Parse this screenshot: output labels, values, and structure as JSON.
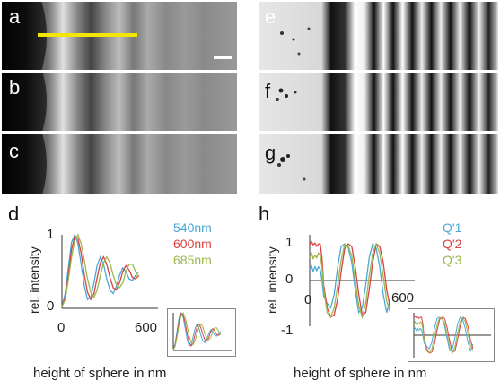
{
  "figure": {
    "panel_letters": {
      "a": "a",
      "b": "b",
      "c": "c",
      "e": "e",
      "f": "f",
      "g": "g",
      "d": "d",
      "h": "h"
    },
    "scale_bar_color": "#ffffff",
    "profile_line_color": "#f2e600"
  },
  "chart_data": [
    {
      "panel": "d",
      "type": "line",
      "xlabel": "height of sphere in nm",
      "ylabel": "rel. intensity",
      "xlim": [
        0,
        600
      ],
      "ylim": [
        0,
        1
      ],
      "x_ticks": [
        "0",
        "600"
      ],
      "y_ticks": [
        "0",
        "1"
      ],
      "grid": false,
      "legend_position": "right",
      "series": [
        {
          "name": "540nm",
          "color": "#4aa8d8",
          "x": [
            0,
            20,
            40,
            60,
            80,
            100,
            120,
            140,
            160,
            180,
            200,
            220,
            240,
            260,
            280,
            300,
            320,
            340,
            360,
            380,
            400,
            420,
            440,
            460,
            480
          ],
          "y": [
            0.02,
            0.2,
            0.55,
            0.9,
            1.0,
            0.88,
            0.6,
            0.3,
            0.12,
            0.15,
            0.35,
            0.58,
            0.7,
            0.6,
            0.4,
            0.25,
            0.2,
            0.3,
            0.45,
            0.55,
            0.5,
            0.4,
            0.38,
            0.45,
            0.5
          ]
        },
        {
          "name": "600nm",
          "color": "#d94040",
          "x": [
            0,
            20,
            40,
            60,
            80,
            100,
            120,
            140,
            160,
            180,
            200,
            220,
            240,
            260,
            280,
            300,
            320,
            340,
            360,
            380,
            400,
            420,
            440,
            460,
            480
          ],
          "y": [
            0.02,
            0.15,
            0.45,
            0.8,
            0.98,
            0.95,
            0.75,
            0.45,
            0.22,
            0.12,
            0.2,
            0.42,
            0.62,
            0.7,
            0.6,
            0.42,
            0.28,
            0.25,
            0.35,
            0.5,
            0.58,
            0.52,
            0.42,
            0.4,
            0.45
          ]
        },
        {
          "name": "685nm",
          "color": "#9ab84a",
          "x": [
            0,
            20,
            40,
            60,
            80,
            100,
            120,
            140,
            160,
            180,
            200,
            220,
            240,
            260,
            280,
            300,
            320,
            340,
            360,
            380,
            400,
            420,
            440,
            460,
            480
          ],
          "y": [
            0.02,
            0.12,
            0.38,
            0.7,
            0.92,
            1.0,
            0.88,
            0.65,
            0.4,
            0.22,
            0.15,
            0.25,
            0.45,
            0.62,
            0.7,
            0.62,
            0.45,
            0.32,
            0.28,
            0.35,
            0.5,
            0.6,
            0.6,
            0.5,
            0.42
          ]
        }
      ]
    },
    {
      "panel": "h",
      "type": "line",
      "xlabel": "height of sphere in nm",
      "ylabel": "rel. intensity",
      "xlim": [
        0,
        600
      ],
      "ylim": [
        -1,
        1
      ],
      "x_ticks": [
        "0",
        "600"
      ],
      "y_ticks": [
        "1",
        "0",
        "-1"
      ],
      "grid": false,
      "legend_position": "right",
      "series": [
        {
          "name": "Q'1",
          "color": "#4aa8d8",
          "x": [
            0,
            10,
            20,
            30,
            40,
            50,
            60,
            70,
            80,
            100,
            120,
            140,
            160,
            180,
            200,
            220,
            240,
            260,
            280,
            300,
            320,
            340,
            360,
            380,
            400,
            420,
            440,
            460
          ],
          "y": [
            0.25,
            0.32,
            0.2,
            0.3,
            0.22,
            0.3,
            0.25,
            0.0,
            -0.35,
            -0.5,
            -0.6,
            -0.3,
            0.3,
            0.75,
            0.8,
            0.72,
            0.4,
            -0.2,
            -0.7,
            -0.6,
            -0.1,
            0.5,
            0.8,
            0.7,
            0.3,
            -0.3,
            -0.7,
            -0.4
          ]
        },
        {
          "name": "Q'2",
          "color": "#d94040",
          "x": [
            0,
            10,
            20,
            30,
            40,
            50,
            60,
            70,
            80,
            100,
            120,
            140,
            160,
            180,
            200,
            220,
            240,
            260,
            280,
            300,
            320,
            340,
            360,
            380,
            400,
            420,
            440,
            460
          ],
          "y": [
            0.78,
            0.85,
            0.78,
            0.82,
            0.75,
            0.8,
            0.8,
            0.5,
            -0.1,
            -0.6,
            -0.8,
            -0.75,
            -0.4,
            0.2,
            0.7,
            0.8,
            0.75,
            0.3,
            -0.3,
            -0.75,
            -0.7,
            -0.2,
            0.4,
            0.8,
            0.75,
            0.4,
            -0.2,
            -0.6
          ]
        },
        {
          "name": "Q'3",
          "color": "#9ab84a",
          "x": [
            0,
            10,
            20,
            30,
            40,
            50,
            60,
            70,
            80,
            100,
            120,
            140,
            160,
            180,
            200,
            220,
            240,
            260,
            280,
            300,
            320,
            340,
            360,
            380,
            400,
            420,
            440,
            460
          ],
          "y": [
            0.5,
            0.6,
            0.48,
            0.55,
            0.5,
            0.6,
            0.55,
            0.3,
            -0.2,
            -0.7,
            -0.8,
            -0.6,
            -0.1,
            0.45,
            0.8,
            0.75,
            0.55,
            0.0,
            -0.55,
            -0.8,
            -0.5,
            0.1,
            0.6,
            0.8,
            0.6,
            0.1,
            -0.45,
            -0.7
          ]
        }
      ]
    }
  ]
}
